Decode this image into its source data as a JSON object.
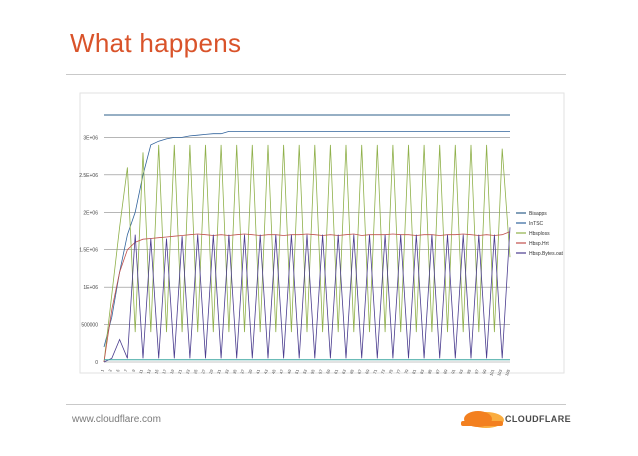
{
  "slide": {
    "title": "What happens",
    "footer_url": "www.cloudflare.com",
    "logo_text": "CLOUDFLARE",
    "colors": {
      "title": "#d9532a",
      "logo_orange": "#f38020",
      "logo_light": "#faad3f"
    }
  },
  "chart_data": {
    "type": "line",
    "title": "",
    "y_ticks": [
      "0",
      "500000",
      "1E+06",
      "1.5E+06",
      "2E+06",
      "2.5E+06",
      "3E+06"
    ],
    "ylim": [
      0,
      3500000
    ],
    "x": [
      1,
      3,
      5,
      7,
      9,
      11,
      13,
      15,
      17,
      19,
      21,
      23,
      25,
      27,
      29,
      31,
      33,
      35,
      37,
      39,
      41,
      43,
      45,
      47,
      49,
      51,
      53,
      55,
      57,
      59,
      61,
      63,
      65,
      67,
      69,
      71,
      73,
      75,
      77,
      79,
      81,
      83,
      85,
      87,
      89,
      91,
      93,
      95,
      97,
      99,
      101,
      103,
      105
    ],
    "series": [
      {
        "name": "Bisapps",
        "color": "#2e5f8a",
        "values": [
          3300000,
          3300000,
          3300000,
          3300000,
          3300000,
          3300000,
          3300000,
          3300000,
          3300000,
          3300000,
          3300000,
          3300000,
          3300000,
          3300000,
          3300000,
          3300000,
          3300000,
          3300000,
          3300000,
          3300000,
          3300000,
          3300000,
          3300000,
          3300000,
          3300000,
          3300000,
          3300000,
          3300000,
          3300000,
          3300000,
          3300000,
          3300000,
          3300000,
          3300000,
          3300000,
          3300000,
          3300000,
          3300000,
          3300000,
          3300000,
          3300000,
          3300000,
          3300000,
          3300000,
          3300000,
          3300000,
          3300000,
          3300000,
          3300000,
          3300000,
          3300000,
          3300000,
          3300000
        ]
      },
      {
        "name": "InTSC",
        "color": "#31639c",
        "values": [
          200000,
          600000,
          1200000,
          1700000,
          2000000,
          2500000,
          2900000,
          2950000,
          2980000,
          3000000,
          3000000,
          3020000,
          3030000,
          3040000,
          3050000,
          3050000,
          3080000,
          3080000,
          3080000,
          3080000,
          3080000,
          3080000,
          3080000,
          3080000,
          3080000,
          3080000,
          3080000,
          3080000,
          3080000,
          3080000,
          3080000,
          3080000,
          3080000,
          3080000,
          3080000,
          3080000,
          3080000,
          3080000,
          3080000,
          3080000,
          3080000,
          3080000,
          3080000,
          3080000,
          3080000,
          3080000,
          3080000,
          3080000,
          3080000,
          3080000,
          3080000,
          3080000,
          3080000
        ]
      },
      {
        "name": "Hbsploss",
        "color": "#8fb04a",
        "values": [
          0,
          900000,
          1800000,
          2600000,
          400000,
          2800000,
          400000,
          2900000,
          400000,
          2900000,
          400000,
          2900000,
          400000,
          2900000,
          400000,
          2900000,
          400000,
          2900000,
          400000,
          2900000,
          400000,
          2900000,
          400000,
          2900000,
          400000,
          2900000,
          400000,
          2900000,
          400000,
          2900000,
          400000,
          2900000,
          400000,
          2900000,
          400000,
          2900000,
          400000,
          2900000,
          400000,
          2900000,
          400000,
          2900000,
          400000,
          2900000,
          400000,
          2900000,
          400000,
          2900000,
          400000,
          2900000,
          400000,
          2850000,
          1400000
        ]
      },
      {
        "name": "Hbsp.Hrt",
        "color": "#c0504d",
        "values": [
          0,
          700000,
          1200000,
          1500000,
          1600000,
          1640000,
          1650000,
          1660000,
          1670000,
          1680000,
          1690000,
          1700000,
          1710000,
          1700000,
          1690000,
          1700000,
          1690000,
          1700000,
          1710000,
          1700000,
          1690000,
          1700000,
          1700000,
          1690000,
          1700000,
          1700000,
          1710000,
          1700000,
          1690000,
          1700000,
          1690000,
          1700000,
          1710000,
          1690000,
          1700000,
          1700000,
          1700000,
          1710000,
          1700000,
          1700000,
          1690000,
          1700000,
          1700000,
          1690000,
          1700000,
          1700000,
          1710000,
          1700000,
          1690000,
          1700000,
          1690000,
          1700000,
          1740000
        ]
      },
      {
        "name": "Hbsp.Bytes.oat",
        "color": "#4b3d8f",
        "values": [
          0,
          50000,
          300000,
          50000,
          1700000,
          50000,
          1650000,
          50000,
          1650000,
          50000,
          1680000,
          50000,
          1700000,
          50000,
          1700000,
          50000,
          1700000,
          50000,
          1700000,
          50000,
          1700000,
          50000,
          1700000,
          50000,
          1700000,
          50000,
          1700000,
          50000,
          1700000,
          50000,
          1700000,
          50000,
          1700000,
          50000,
          1700000,
          50000,
          1700000,
          50000,
          1700000,
          50000,
          1700000,
          50000,
          1700000,
          50000,
          1700000,
          50000,
          1700000,
          50000,
          1700000,
          50000,
          1700000,
          50000,
          1800000
        ]
      },
      {
        "name": "",
        "color": "#3aa6a0",
        "values": [
          30000,
          30000,
          30000,
          30000,
          30000,
          30000,
          30000,
          30000,
          30000,
          30000,
          30000,
          30000,
          30000,
          30000,
          30000,
          30000,
          30000,
          30000,
          30000,
          30000,
          30000,
          30000,
          30000,
          30000,
          30000,
          30000,
          30000,
          30000,
          30000,
          30000,
          30000,
          30000,
          30000,
          30000,
          30000,
          30000,
          30000,
          30000,
          30000,
          30000,
          30000,
          30000,
          30000,
          30000,
          30000,
          30000,
          30000,
          30000,
          30000,
          30000,
          30000,
          30000,
          30000
        ]
      }
    ],
    "legend_position": "right",
    "grid": true
  }
}
